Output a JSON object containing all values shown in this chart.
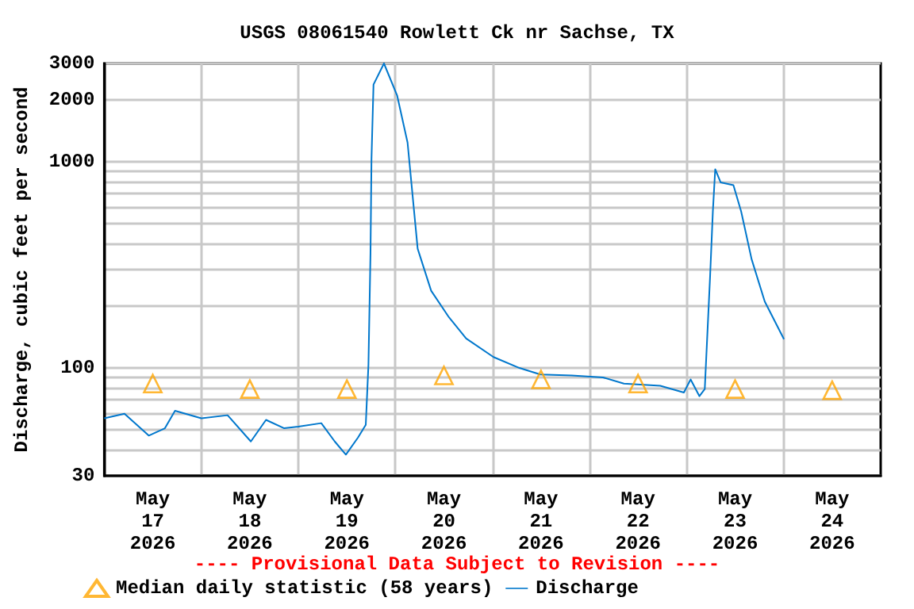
{
  "chart_data": {
    "type": "line",
    "title": "USGS 08061540 Rowlett Ck nr Sachse, TX",
    "ylabel": "Discharge, cubic feet per second",
    "annotations": [
      "---- Provisional Data Subject to Revision ----"
    ],
    "log": "y",
    "grid": true,
    "legend": "bottom left",
    "xlim": [
      "2026-05-17T00:00",
      "2026-05-25T00:00"
    ],
    "xticks": [
      {
        "value": "2026-05-17T12:00",
        "label": "May\n17\n2026"
      },
      {
        "value": "2026-05-18T12:00",
        "label": "May\n18\n2026"
      },
      {
        "value": "2026-05-19T12:00",
        "label": "May\n19\n2026"
      },
      {
        "value": "2026-05-20T12:00",
        "label": "May\n20\n2026"
      },
      {
        "value": "2026-05-21T12:00",
        "label": "May\n21\n2026"
      },
      {
        "value": "2026-05-22T12:00",
        "label": "May\n22\n2026"
      },
      {
        "value": "2026-05-23T12:00",
        "label": "May\n23\n2026"
      },
      {
        "value": "2026-05-24T12:00",
        "label": "May\n24\n2026"
      },
      {
        "value": "2026-05-18T00:00",
        "label": null
      },
      {
        "value": "2026-05-19T00:00",
        "label": null
      },
      {
        "value": "2026-05-20T00:00",
        "label": null
      },
      {
        "value": "2026-05-21T00:00",
        "label": null
      },
      {
        "value": "2026-05-22T00:00",
        "label": null
      },
      {
        "value": "2026-05-23T00:00",
        "label": null
      },
      {
        "value": "2026-05-24T00:00",
        "label": null
      }
    ],
    "ylim": [
      30,
      3000
    ],
    "yticks": [
      30,
      {
        "value": 40,
        "label": null
      },
      {
        "value": 50,
        "label": null
      },
      {
        "value": 60,
        "label": null
      },
      {
        "value": 70,
        "label": null
      },
      {
        "value": 80,
        "label": null
      },
      {
        "value": 90,
        "label": null
      },
      100,
      {
        "value": 200,
        "label": null
      },
      {
        "value": 300,
        "label": null
      },
      {
        "value": 400,
        "label": null
      },
      {
        "value": 500,
        "label": null
      },
      {
        "value": 600,
        "label": null
      },
      {
        "value": 700,
        "label": null
      },
      {
        "value": 800,
        "label": null
      },
      {
        "value": 900,
        "label": null
      },
      1000,
      2000,
      3000
    ],
    "series": [
      {
        "name": "Median daily statistic (58 years)",
        "type": "scatter",
        "marker": "triangle",
        "color": "#ffa500",
        "x": [
          "2026-05-17T12:00",
          "2026-05-18T12:00",
          "2026-05-19T12:00",
          "2026-05-20T12:00",
          "2026-05-21T12:00",
          "2026-05-22T12:00",
          "2026-05-23T12:00",
          "2026-05-24T12:00"
        ],
        "values": [
          84,
          79,
          79,
          92,
          88,
          84,
          79,
          78
        ]
      },
      {
        "name": "Discharge",
        "marker": "none",
        "color": "#0077cc",
        "x": [
          "2026-05-17T00:00",
          "2026-05-17T05:00",
          "2026-05-17T11:00",
          "2026-05-17T15:00",
          "2026-05-17T17:30",
          "2026-05-18T00:00",
          "2026-05-18T06:30",
          "2026-05-18T12:15",
          "2026-05-18T16:00",
          "2026-05-18T20:30",
          "2026-05-19T00:00",
          "2026-05-19T05:40",
          "2026-05-19T09:00",
          "2026-05-19T11:45",
          "2026-05-19T14:45",
          "2026-05-19T16:40",
          "2026-05-19T17:20",
          "2026-05-19T17:50",
          "2026-05-19T18:05",
          "2026-05-19T18:35",
          "2026-05-19T21:10",
          "2026-05-20T00:25",
          "2026-05-20T03:00",
          "2026-05-20T05:30",
          "2026-05-20T08:50",
          "2026-05-20T13:15",
          "2026-05-20T17:30",
          "2026-05-21T00:15",
          "2026-05-21T06:40",
          "2026-05-21T11:50",
          "2026-05-21T19:35",
          "2026-05-22T03:20",
          "2026-05-22T08:30",
          "2026-05-22T17:30",
          "2026-05-22T23:20",
          "2026-05-23T01:00",
          "2026-05-23T03:10",
          "2026-05-23T04:30",
          "2026-05-23T05:50",
          "2026-05-23T06:30",
          "2026-05-23T07:05",
          "2026-05-23T08:25",
          "2026-05-23T11:35",
          "2026-05-23T13:30",
          "2026-05-23T16:05",
          "2026-05-23T19:20",
          "2026-05-24T00:05"
        ],
        "values": [
          57,
          60,
          47,
          51,
          62,
          57,
          59,
          44,
          56,
          51,
          52,
          54,
          44,
          38,
          46,
          53,
          104,
          358,
          1035,
          2370,
          3000,
          2100,
          1240,
          379,
          237,
          176,
          139,
          113,
          100,
          93,
          92,
          90,
          84,
          82,
          76,
          88,
          73,
          79,
          283,
          574,
          920,
          795,
          771,
          574,
          337,
          210,
          138
        ]
      }
    ]
  }
}
